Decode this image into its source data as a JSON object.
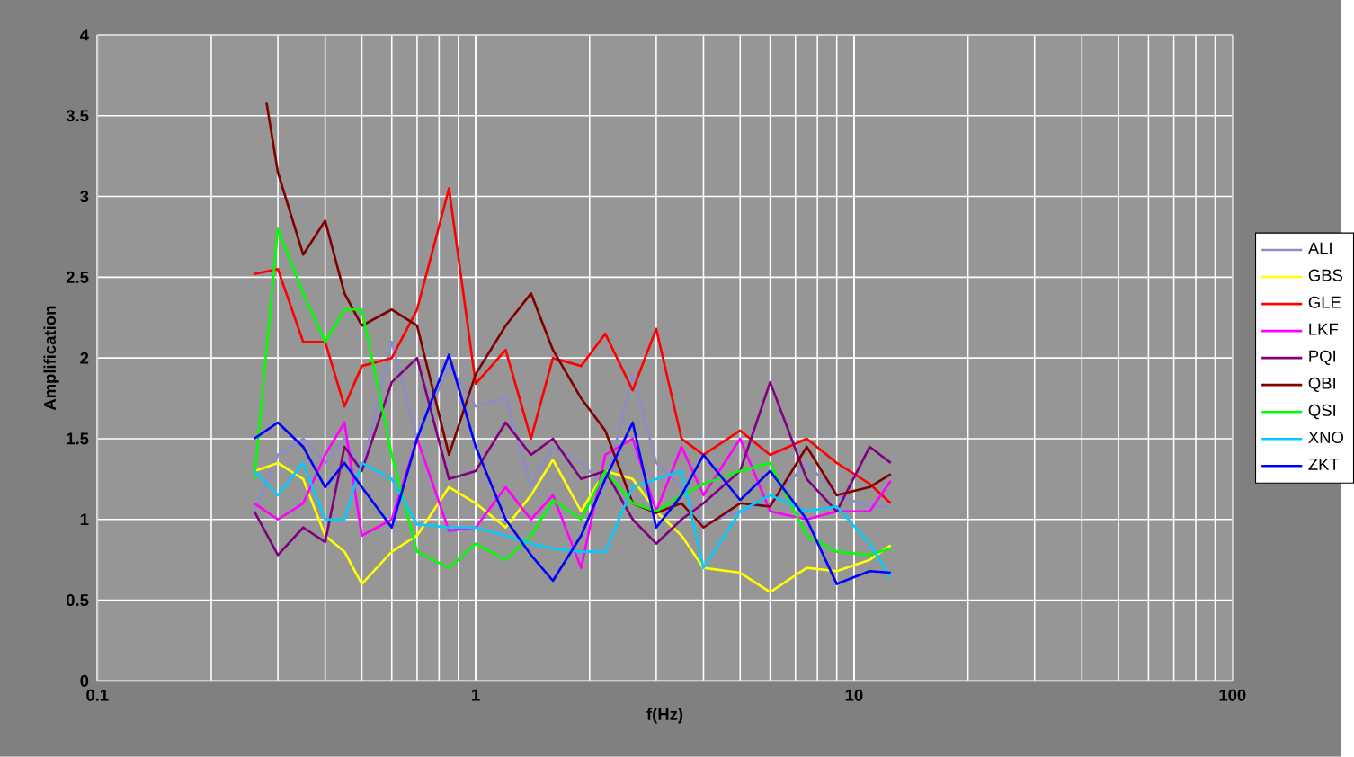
{
  "chart_data": {
    "type": "line",
    "xlabel": "f(Hz)",
    "ylabel": "Amplification",
    "x": [
      0.26,
      0.3,
      0.35,
      0.4,
      0.45,
      0.5,
      0.6,
      0.7,
      0.85,
      1,
      1.2,
      1.4,
      1.6,
      1.9,
      2.2,
      2.6,
      3,
      3.5,
      4,
      5,
      6,
      7.5,
      9,
      11,
      12.5
    ],
    "series": [
      {
        "name": "ALI",
        "color": "#8c8cc8",
        "values": [
          1.05,
          1.4,
          1.5,
          1.35,
          1.5,
          1.3,
          2.1,
          1.5,
          1.95,
          1.7,
          1.75,
          1.2,
          1.45,
          1.35,
          1.2,
          1.9,
          1.35,
          1.2,
          0.97,
          1.05,
          1.1,
          1.35,
          1.15,
          1.08,
          1.08
        ]
      },
      {
        "name": "GBS",
        "color": "#ffff00",
        "values": [
          1.3,
          1.35,
          1.25,
          0.9,
          0.8,
          0.6,
          0.8,
          0.9,
          1.2,
          1.1,
          0.95,
          1.15,
          1.37,
          1.05,
          1.3,
          1.25,
          1.05,
          0.9,
          0.7,
          0.67,
          0.55,
          0.7,
          0.68,
          0.75,
          0.84
        ]
      },
      {
        "name": "GLE",
        "color": "#ff0000",
        "values": [
          2.52,
          2.55,
          2.1,
          2.1,
          1.7,
          1.95,
          2.0,
          2.3,
          3.05,
          1.84,
          2.05,
          1.5,
          2.0,
          1.95,
          2.15,
          1.8,
          2.18,
          1.5,
          1.4,
          1.55,
          1.4,
          1.5,
          1.35,
          1.22,
          1.1
        ]
      },
      {
        "name": "LKF",
        "color": "#ff00ff",
        "values": [
          1.1,
          1.0,
          1.1,
          1.4,
          1.6,
          0.9,
          1.0,
          1.5,
          0.93,
          0.95,
          1.2,
          1.0,
          1.15,
          0.7,
          1.4,
          1.5,
          1.05,
          1.45,
          1.15,
          1.5,
          1.05,
          1.0,
          1.05,
          1.05,
          1.24
        ]
      },
      {
        "name": "PQI",
        "color": "#800080",
        "values": [
          1.05,
          0.78,
          0.95,
          0.86,
          1.45,
          1.3,
          1.85,
          2.0,
          1.25,
          1.3,
          1.6,
          1.4,
          1.5,
          1.25,
          1.3,
          1.0,
          0.85,
          1.0,
          1.1,
          1.3,
          1.85,
          1.25,
          1.05,
          1.45,
          1.35
        ]
      },
      {
        "name": "QBI",
        "color": "#800000",
        "x": [
          0.28,
          0.3,
          0.35,
          0.4,
          0.45,
          0.5,
          0.6,
          0.7,
          0.85,
          1,
          1.2,
          1.4,
          1.6,
          1.9,
          2.2,
          2.6,
          3,
          3.5,
          4,
          5,
          6,
          7.5,
          9,
          11,
          12.5
        ],
        "values": [
          3.58,
          3.15,
          2.64,
          2.85,
          2.4,
          2.2,
          2.3,
          2.2,
          1.4,
          1.9,
          2.2,
          2.4,
          2.05,
          1.75,
          1.55,
          1.1,
          1.04,
          1.1,
          0.95,
          1.1,
          1.08,
          1.45,
          1.15,
          1.2,
          1.28
        ]
      },
      {
        "name": "QSI",
        "color": "#00ff00",
        "values": [
          1.25,
          2.8,
          2.4,
          2.1,
          2.3,
          2.3,
          1.4,
          0.8,
          0.7,
          0.85,
          0.75,
          0.9,
          1.12,
          1.0,
          1.3,
          1.1,
          1.05,
          1.15,
          1.22,
          1.3,
          1.35,
          0.9,
          0.8,
          0.78,
          0.82
        ]
      },
      {
        "name": "XNO",
        "color": "#00ccff",
        "values": [
          1.3,
          1.15,
          1.35,
          1.0,
          1.0,
          1.35,
          1.25,
          0.97,
          0.95,
          0.95,
          0.9,
          0.85,
          0.82,
          0.8,
          0.8,
          1.2,
          1.25,
          1.3,
          0.7,
          1.05,
          1.15,
          1.05,
          1.08,
          0.85,
          0.64
        ]
      },
      {
        "name": "ZKT",
        "color": "#0000ff",
        "values": [
          1.5,
          1.6,
          1.45,
          1.2,
          1.35,
          1.2,
          0.95,
          1.5,
          2.02,
          1.45,
          1.0,
          0.78,
          0.62,
          0.9,
          1.25,
          1.6,
          0.95,
          1.15,
          1.4,
          1.12,
          1.3,
          1.0,
          0.6,
          0.68,
          0.67
        ]
      }
    ],
    "log": "x",
    "xlim": [
      0.1,
      100
    ],
    "xticks": [
      0.1,
      1,
      10,
      100
    ],
    "ylim": [
      0,
      4
    ],
    "yticks": [
      0,
      0.5,
      1,
      1.5,
      2,
      2.5,
      3,
      3.5,
      4
    ],
    "grid": true,
    "legend": "right",
    "marker": "none",
    "line_style": "solid"
  }
}
